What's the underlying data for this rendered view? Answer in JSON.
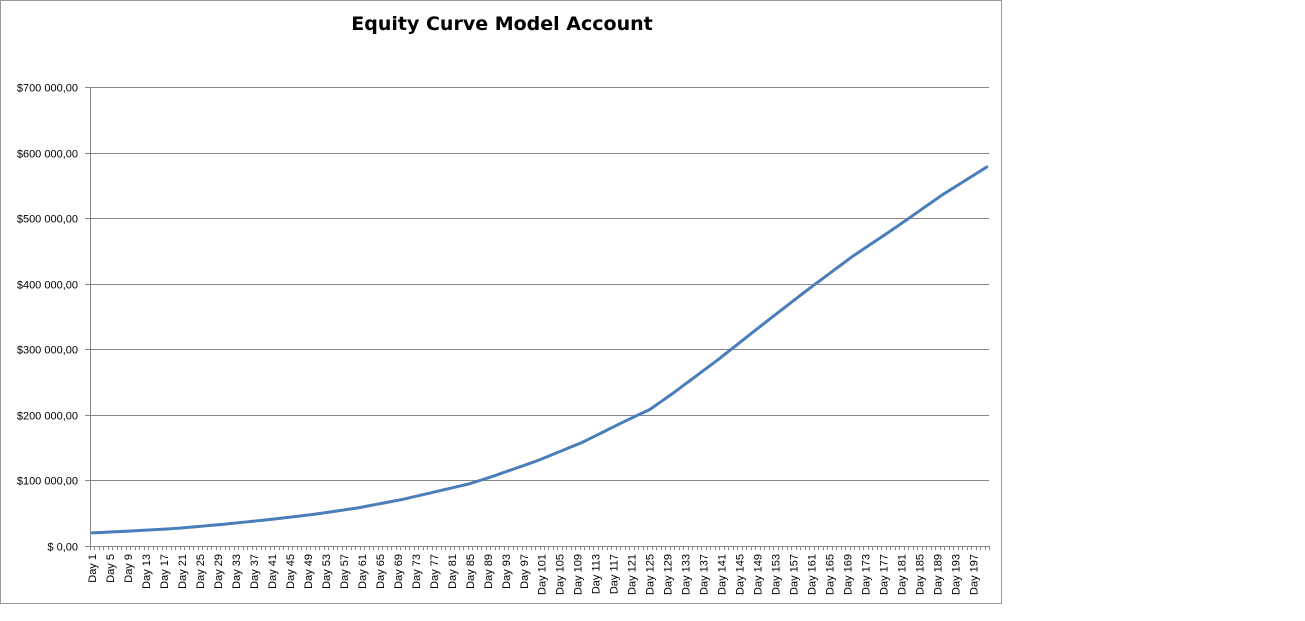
{
  "chart_data": {
    "type": "line",
    "title": "Equity Curve Model Account",
    "xlabel": "",
    "ylabel": "",
    "ylim": [
      0,
      700000
    ],
    "y_ticks": [
      0,
      100000,
      200000,
      300000,
      400000,
      500000,
      600000,
      700000
    ],
    "y_tick_labels": [
      "$ 0,00",
      "$100 000,00",
      "$200 000,00",
      "$300 000,00",
      "$400 000,00",
      "$500 000,00",
      "$600 000,00",
      "$700 000,00"
    ],
    "grid": true,
    "legend": "none",
    "x_count": 200,
    "x_label_prefix": "Day ",
    "x_label_step": 4,
    "line_color": "#4a7ebb",
    "series": [
      {
        "x": [
          1,
          10,
          20,
          30,
          40,
          50,
          60,
          70,
          80,
          85,
          90,
          100,
          110,
          120,
          125,
          130,
          140,
          150,
          160,
          170,
          180,
          190,
          200
        ],
        "values": [
          20000,
          23000,
          27000,
          33000,
          40000,
          48000,
          58000,
          71000,
          87000,
          95000,
          106000,
          130000,
          158000,
          192000,
          208000,
          232000,
          283000,
          337000,
          390000,
          441000,
          487000,
          535000,
          578000
        ]
      }
    ]
  }
}
